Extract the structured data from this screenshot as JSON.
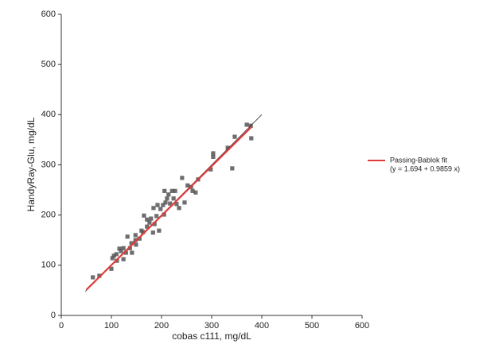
{
  "chart_data": {
    "type": "scatter",
    "xlabel": "cobas c111, mg/dL",
    "ylabel": "HandyRay-Glu, mg/dL",
    "xlim": [
      0,
      600
    ],
    "ylim": [
      0,
      600
    ],
    "xticks": [
      0,
      100,
      200,
      300,
      400,
      500,
      600
    ],
    "yticks": [
      0,
      100,
      200,
      300,
      400,
      500,
      600
    ],
    "fit_equation": "(y = 1.694 + 0.9859 x)",
    "series": [
      {
        "type": "scatter",
        "color": "#555555",
        "x": [
          63,
          76,
          100,
          102,
          105,
          110,
          116,
          119,
          111,
          124,
          129,
          132,
          137,
          141,
          148,
          149,
          156,
          160,
          165,
          163,
          171,
          176,
          179,
          183,
          186,
          190,
          195,
          198,
          203,
          205,
          208,
          211,
          214,
          217,
          221,
          224,
          230,
          235,
          241,
          246,
          252,
          259,
          262,
          268,
          273,
          298,
          303,
          303,
          332,
          341,
          346,
          370,
          379,
          378,
          124,
          140,
          148,
          171,
          184,
          206,
          227,
          192
        ],
        "y": [
          76,
          79,
          93,
          114,
          119,
          122,
          133,
          128,
          109,
          112,
          125,
          157,
          134,
          125,
          150,
          141,
          153,
          169,
          199,
          166,
          177,
          185,
          193,
          165,
          182,
          198,
          169,
          212,
          220,
          201,
          225,
          233,
          241,
          223,
          248,
          233,
          222,
          214,
          274,
          225,
          259,
          256,
          248,
          245,
          271,
          291,
          316,
          323,
          334,
          293,
          356,
          380,
          353,
          378,
          134,
          144,
          160,
          191,
          214,
          248,
          248,
          220
        ]
      },
      {
        "type": "line",
        "name": "Passing-Bablok fit",
        "color": "#e03a3a",
        "x": [
          50,
          380
        ],
        "y": [
          51,
          376.3
        ]
      },
      {
        "type": "line",
        "color": "#333333",
        "x": [
          48,
          400
        ],
        "y": [
          48,
          400
        ]
      }
    ]
  }
}
